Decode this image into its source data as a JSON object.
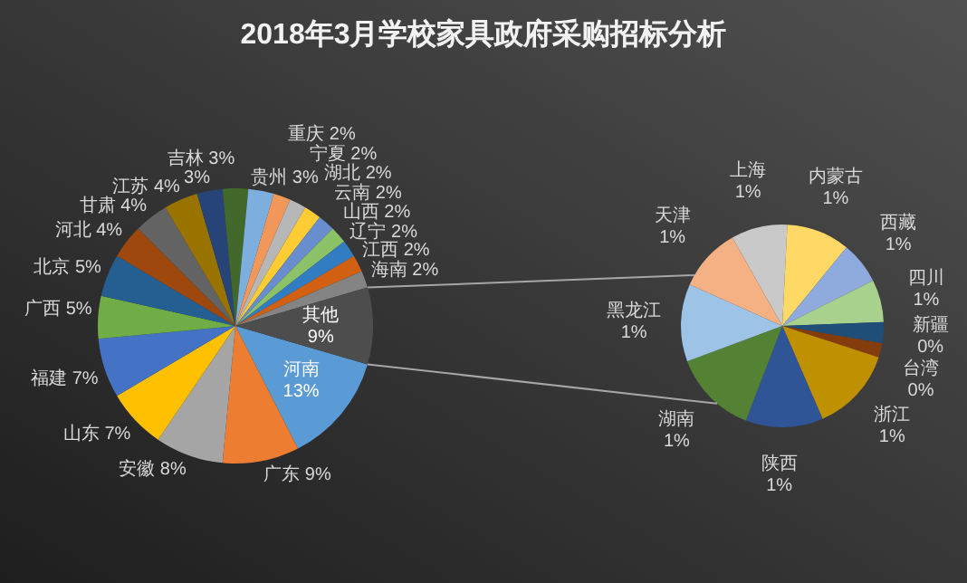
{
  "chart_data": [
    {
      "type": "pie",
      "title": "2018年3月学校家具政府采购招标分析",
      "categories": [
        "河南",
        "广东",
        "安徽",
        "山东",
        "福建",
        "广西",
        "北京",
        "河北",
        "甘肃",
        "江苏",
        null,
        "吉林",
        "贵州",
        "重庆",
        "宁夏",
        "湖北",
        "云南",
        "山西",
        "辽宁",
        "江西",
        "海南",
        "其他"
      ],
      "values": [
        13,
        9,
        8,
        7,
        7,
        5,
        5,
        4,
        4,
        4,
        3,
        3,
        3,
        2,
        2,
        2,
        2,
        2,
        2,
        2,
        2,
        9
      ],
      "value_labels": [
        "13%",
        "9%",
        "8%",
        "7%",
        "7%",
        "5%",
        "5%",
        "4%",
        "4%",
        "4%",
        "3%",
        "3%",
        "3%",
        "2%",
        "2%",
        "2%",
        "2%",
        "2%",
        "2%",
        "2%",
        "2%",
        "9%"
      ],
      "colors": [
        "#5b9bd5",
        "#ed7d31",
        "#a5a5a5",
        "#ffc000",
        "#4472c4",
        "#70ad47",
        "#255e91",
        "#9e480e",
        "#636363",
        "#997300",
        "#264478",
        "#43682b",
        "#7cafdd",
        "#f1975a",
        "#b7b7b7",
        "#ffcd33",
        "#698ed0",
        "#8cc168",
        "#327dc2",
        "#d26012",
        "#848484",
        "#4d4d4d"
      ]
    },
    {
      "type": "pie",
      "categories": [
        "上海",
        "内蒙古",
        "西藏",
        "四川",
        "新疆",
        "台湾",
        "浙江",
        "陕西",
        "湖南",
        "黑龙江",
        "天津"
      ],
      "values": [
        0.8,
        0.9,
        0.6,
        0.6,
        0.3,
        0.2,
        1.2,
        1.1,
        1.2,
        1.1,
        0.9
      ],
      "value_labels": [
        "1%",
        "1%",
        "1%",
        "1%",
        "0%",
        "0%",
        "1%",
        "1%",
        "1%",
        "1%",
        "1%"
      ],
      "colors": [
        "#c9c9c9",
        "#ffd966",
        "#8faadc",
        "#a9d18e",
        "#1f4e79",
        "#843c0c",
        "#bf9000",
        "#2f5597",
        "#548235",
        "#9dc3e6",
        "#f4b183"
      ]
    }
  ]
}
